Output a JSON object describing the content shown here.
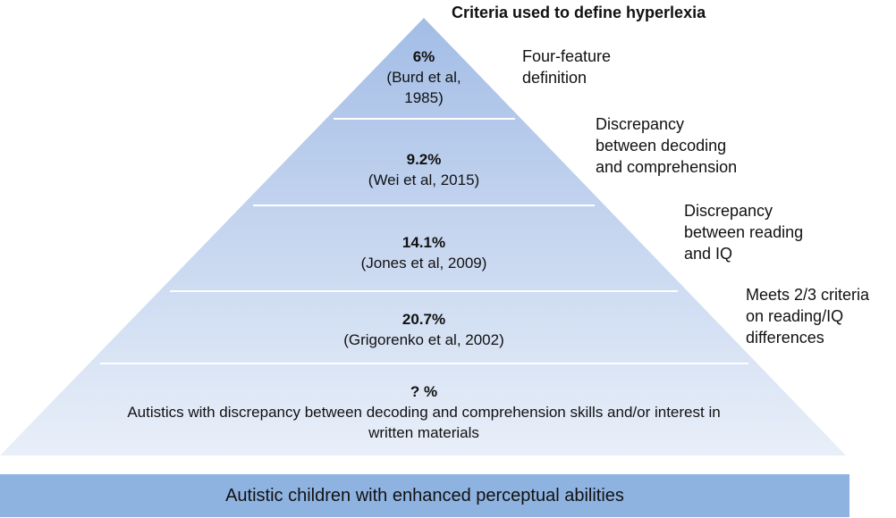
{
  "title": "Criteria used to define hyperlexia",
  "tiers": [
    {
      "percent": "6%",
      "citation": "(Burd et al, 1985)",
      "criteria": "Four-feature\ndefinition"
    },
    {
      "percent": "9.2%",
      "citation": "(Wei et al, 2015)",
      "criteria": "Discrepancy\nbetween decoding\nand comprehension"
    },
    {
      "percent": "14.1%",
      "citation": "(Jones et al, 2009)",
      "criteria": "Discrepancy\nbetween reading\nand IQ"
    },
    {
      "percent": "20.7%",
      "citation": "(Grigorenko et al, 2002)",
      "criteria": "Meets 2/3 criteria\non reading/IQ\ndifferences"
    },
    {
      "percent": "? %",
      "citation": "Autistics with discrepancy between decoding and comprehension skills and/or interest in written materials"
    }
  ],
  "base": "Autistic children with enhanced perceptual abilities",
  "colors": {
    "pyramid_top": "#a3bde6",
    "pyramid_bottom": "#e9eff9",
    "divider": "#ffffff",
    "base_bar": "#8eb3e1"
  }
}
